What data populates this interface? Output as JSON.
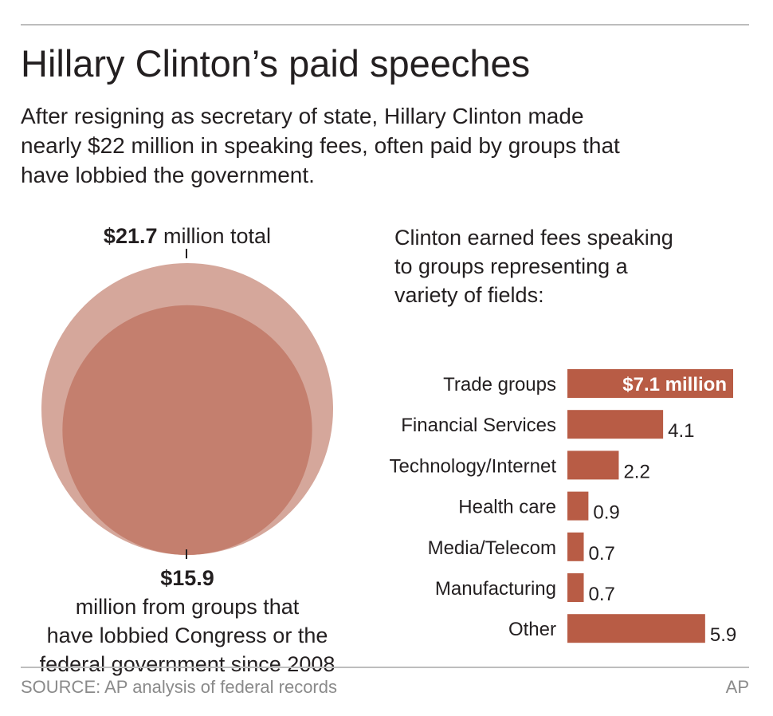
{
  "title": "Hillary Clinton’s paid speeches",
  "subtitle_lines": [
    "After resigning as secretary of state, Hillary Clinton made",
    "nearly $22 million in speaking fees, often paid by groups that",
    "have lobbied the government."
  ],
  "colors": {
    "outer_circle": "#d5a79b",
    "inner_circle": "#c47f6e",
    "bar": "#b85c45",
    "rule": "#bdbdbd",
    "source_text": "#8a8a8a"
  },
  "circle_labels": {
    "total_value": "$21.7",
    "total_text": " million total",
    "lobby_value": "$15.9",
    "lobby_line1": " million from groups that",
    "lobby_line2": "have lobbied Congress or the",
    "lobby_line3": "federal government since 2008"
  },
  "right_intro_lines": [
    "Clinton earned fees speaking",
    "to groups representing a",
    "variety of fields:"
  ],
  "chart_data": [
    {
      "type": "bubble",
      "series": [
        {
          "label": "$21.7 million total",
          "value": 21.7
        },
        {
          "label": "$15.9 million from groups that have lobbied Congress or the federal government since 2008",
          "value": 15.9
        }
      ],
      "units": "million $"
    },
    {
      "type": "bar",
      "orientation": "horizontal",
      "categories": [
        "Trade groups",
        "Financial Services",
        "Technology/Internet",
        "Health care",
        "Media/Telecom",
        "Manufacturing",
        "Other"
      ],
      "values": [
        7.1,
        4.1,
        2.2,
        0.9,
        0.7,
        0.7,
        5.9
      ],
      "value_labels": [
        "$7.1 million",
        "4.1",
        "2.2",
        "0.9",
        "0.7",
        "0.7",
        "5.9"
      ],
      "units": "million $"
    }
  ],
  "source": "SOURCE: AP analysis of federal records",
  "credit": "AP"
}
